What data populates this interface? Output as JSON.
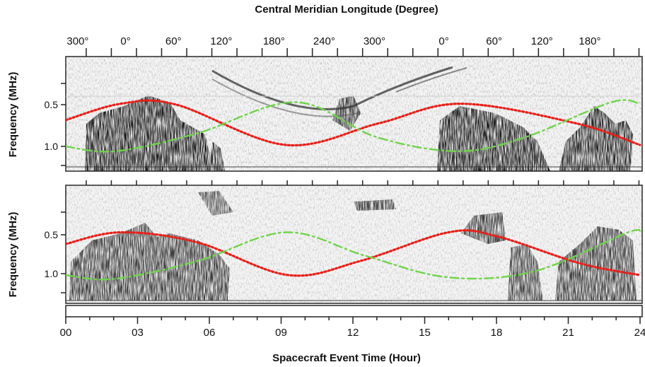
{
  "chart_data": [
    {
      "type": "line",
      "panel": "top",
      "title": "Central Meridian Longitude (Degree)",
      "ylabel": "Frequency (MHz)",
      "ytick_labels": [
        "0.5",
        "1.0"
      ],
      "top_axis_tick_labels": [
        "300°",
        "0°",
        "60°",
        "120°",
        "180°",
        "240°",
        "300°",
        "0°",
        "60°",
        "120°",
        "180°"
      ],
      "top_axis_tick_hours": [
        0.5,
        2.5,
        4.5,
        6.5,
        8.7,
        10.8,
        12.9,
        15.8,
        17.9,
        19.9,
        21.9
      ],
      "xlim": [
        0,
        24
      ],
      "ylim": [
        1.2,
        0.1
      ],
      "series": [
        {
          "style": "dotted",
          "color": "#e8201a",
          "x": [
            0,
            2.3,
            4.6,
            9.2,
            13.1,
            16.5,
            21.3,
            24
          ],
          "values": [
            0.68,
            0.47,
            0.48,
            1.0,
            0.72,
            0.47,
            0.72,
            1.0
          ]
        },
        {
          "style": "dash-dot",
          "color": "#6fd44a",
          "x": [
            0,
            2.1,
            5.5,
            9.6,
            13.0,
            16.4,
            19.2,
            22.8,
            24
          ],
          "values": [
            1.02,
            1.08,
            0.85,
            0.45,
            0.9,
            1.08,
            0.9,
            0.45,
            0.47
          ]
        }
      ]
    },
    {
      "type": "line",
      "panel": "bottom",
      "xlabel": "Spacecraft Event Time (Hour)",
      "ylabel": "Frequency (MHz)",
      "ytick_labels": [
        "0.5",
        "1.0"
      ],
      "xtick_labels": [
        "00",
        "03",
        "06",
        "09",
        "12",
        "15",
        "18",
        "21",
        "24"
      ],
      "x_ticks": [
        0,
        3,
        6,
        9,
        12,
        15,
        18,
        21,
        24
      ],
      "xlim": [
        0,
        24
      ],
      "ylim": [
        1.2,
        0.1
      ],
      "series": [
        {
          "style": "dotted",
          "color": "#e8201a",
          "x": [
            0,
            2.3,
            5.5,
            9.3,
            12.3,
            16.0,
            18.0,
            21.5,
            24
          ],
          "values": [
            0.6,
            0.45,
            0.58,
            1.0,
            0.82,
            0.45,
            0.5,
            0.85,
            1.0
          ]
        },
        {
          "style": "dash-dot",
          "color": "#6fd44a",
          "x": [
            0,
            2.0,
            5.5,
            9.2,
            12.5,
            16.0,
            19.6,
            23.5,
            24
          ],
          "values": [
            1.0,
            1.05,
            0.82,
            0.45,
            0.75,
            1.03,
            0.95,
            0.45,
            0.47
          ]
        }
      ]
    }
  ]
}
